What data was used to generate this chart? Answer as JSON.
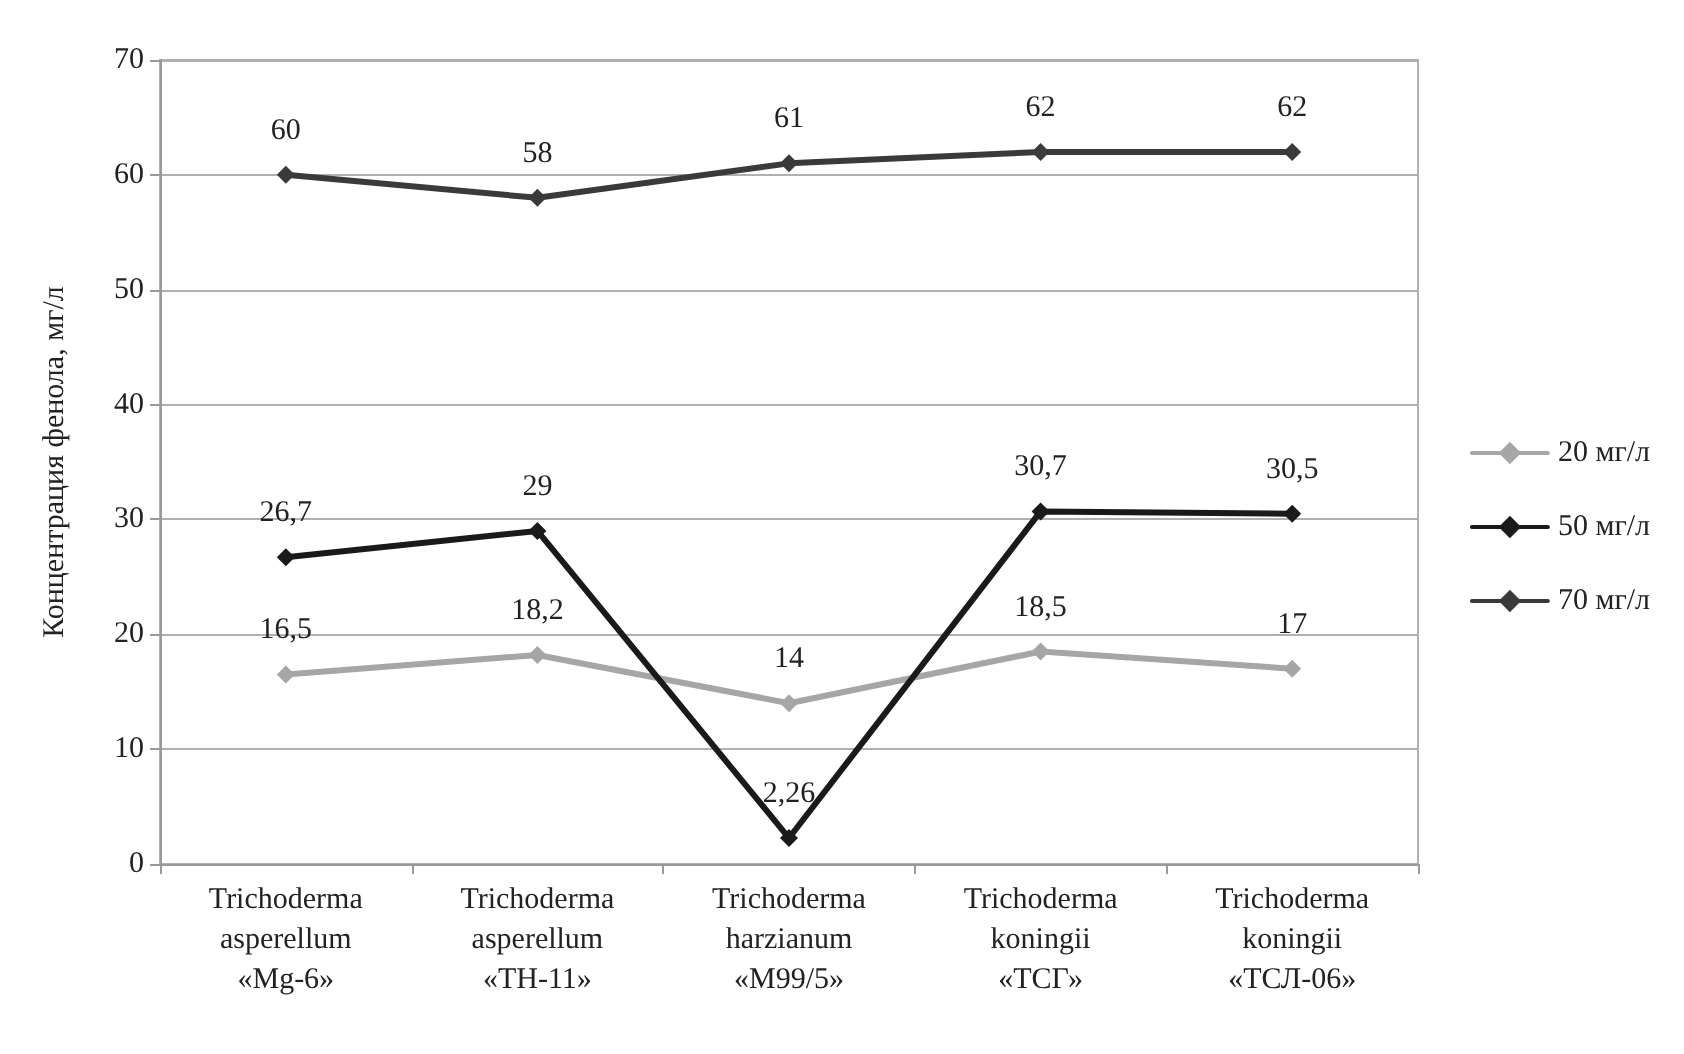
{
  "chart_data": {
    "type": "line",
    "ylabel": "Концентрация фенола, мг/л",
    "categories": [
      "Trichoderma\nasperellum\n«Mg-6»",
      "Trichoderma\nasperellum\n«TH-11»",
      "Trichoderma\nharzianum\n«M99/5»",
      "Trichoderma\nkoningii\n«ТСГ»",
      "Trichoderma\nkoningii\n«ТСЛ-06»"
    ],
    "series": [
      {
        "name": "20 мг/л",
        "color": "#a6a6a6",
        "values": [
          16.5,
          18.2,
          14,
          18.5,
          17
        ],
        "value_labels": [
          "16,5",
          "18,2",
          "14",
          "18,5",
          "17"
        ]
      },
      {
        "name": "50 мг/л",
        "color": "#1a1a1a",
        "values": [
          26.7,
          29,
          2.26,
          30.7,
          30.5
        ],
        "value_labels": [
          "26,7",
          "29",
          "2,26",
          "30,7",
          "30,5"
        ]
      },
      {
        "name": "70 мг/л",
        "color": "#3a3a3a",
        "values": [
          60,
          58,
          61,
          62,
          62
        ],
        "value_labels": [
          "60",
          "58",
          "61",
          "62",
          "62"
        ]
      }
    ],
    "ylim": [
      0,
      70
    ],
    "yticks": [
      0,
      10,
      20,
      30,
      40,
      50,
      60,
      70
    ],
    "grid": "y",
    "legend": "right",
    "marker": "diamond",
    "line_style": "solid"
  }
}
